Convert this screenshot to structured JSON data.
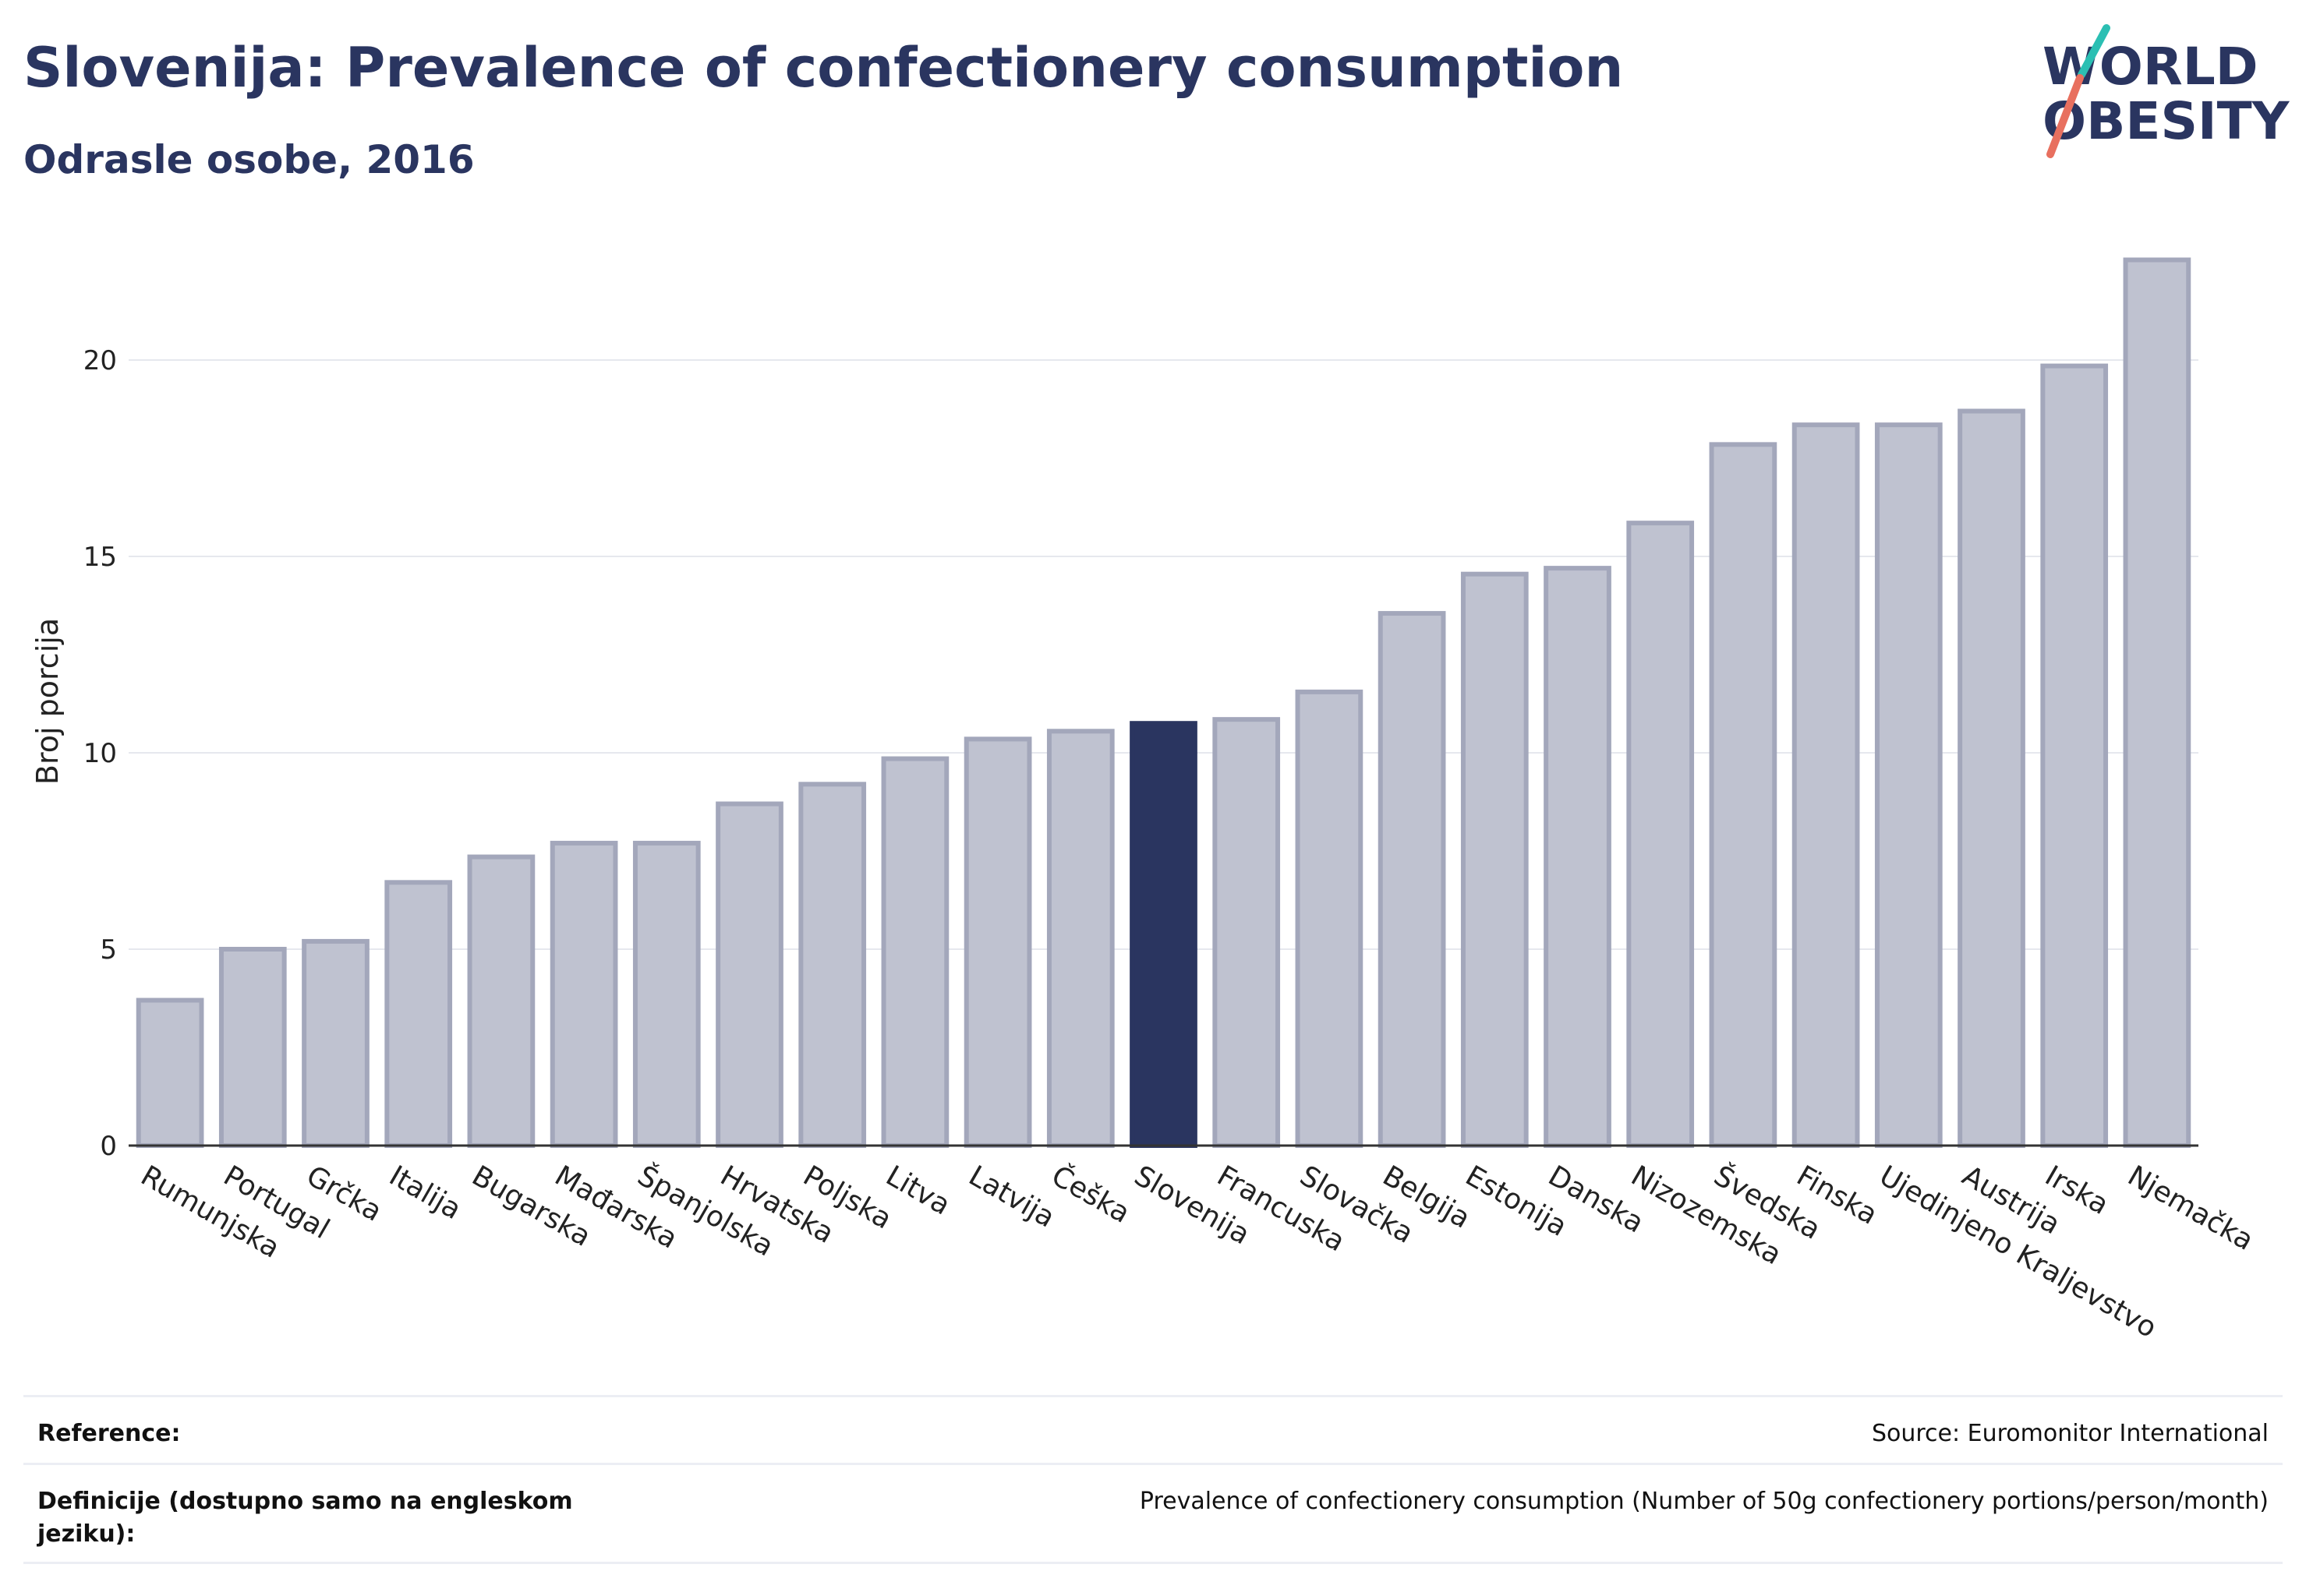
{
  "header": {
    "title": "Slovenija: Prevalence of confectionery consumption",
    "subtitle": "Odrasle osobe, 2016"
  },
  "logo": {
    "line1": "WORLD",
    "line2": "OBESITY"
  },
  "colors": {
    "highlight": "#2a3560",
    "bar_fill": "#bfc2d0",
    "bar_stroke": "#a3a7bb",
    "accent_teal": "#2bbfb3",
    "accent_coral": "#e8705f"
  },
  "chart_data": {
    "type": "bar",
    "ylabel": "Broj porcija",
    "ylim": [
      0,
      23
    ],
    "yticks": [
      0,
      5,
      10,
      15,
      20
    ],
    "grid": true,
    "highlight_category": "Slovenija",
    "categories": [
      "Rumunjska",
      "Portugal",
      "Grčka",
      "Italija",
      "Bugarska",
      "Mađarska",
      "Španjolska",
      "Hrvatska",
      "Poljska",
      "Litva",
      "Latvija",
      "Češka",
      "Slovenija",
      "Francuska",
      "Slovačka",
      "Belgija",
      "Estonija",
      "Danska",
      "Nizozemska",
      "Švedska",
      "Finska",
      "Ujedinjeno Kraljevstvo",
      "Austrija",
      "Irska",
      "Njemačka"
    ],
    "values": [
      3.7,
      5.0,
      5.2,
      6.7,
      7.35,
      7.7,
      7.7,
      8.7,
      9.2,
      9.85,
      10.35,
      10.55,
      10.75,
      10.85,
      11.55,
      13.55,
      14.55,
      14.7,
      15.85,
      17.85,
      18.35,
      18.35,
      18.7,
      19.85,
      22.55
    ]
  },
  "references": {
    "reference_label": "Reference:",
    "source": "Source: Euromonitor International",
    "definition_label": "Definicije (dostupno samo na engleskom jeziku):",
    "definition_text": "Prevalence of confectionery consumption (Number of 50g confectionery portions/person/month)"
  }
}
